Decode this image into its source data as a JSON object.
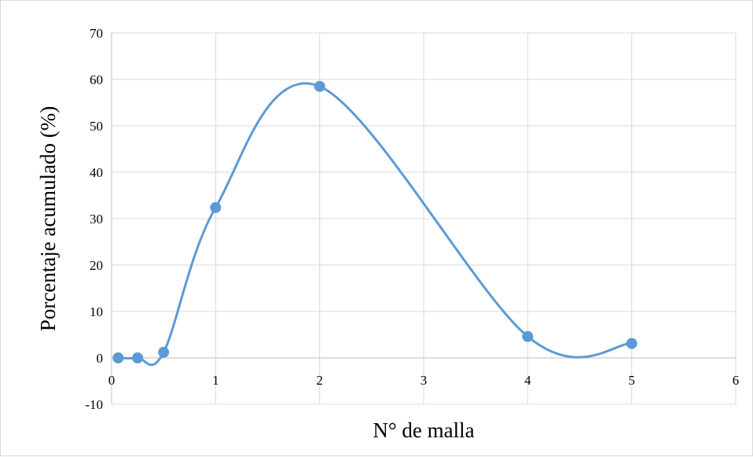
{
  "chart_data": {
    "type": "scatter",
    "title": "",
    "xlabel": "N° de malla",
    "ylabel": "Porcentaje acumulado (%)",
    "xlim": [
      0,
      6
    ],
    "ylim": [
      -10,
      70
    ],
    "x_ticks": [
      "0",
      "1",
      "2",
      "3",
      "4",
      "5",
      "6"
    ],
    "y_ticks": [
      "-10",
      "0",
      "10",
      "20",
      "30",
      "40",
      "50",
      "60",
      "70"
    ],
    "grid": true,
    "legend": "none",
    "smooth": true,
    "series": [
      {
        "color": "#5b9bd5",
        "points": [
          {
            "x": 0.063,
            "y": 0
          },
          {
            "x": 0.25,
            "y": 0
          },
          {
            "x": 0.5,
            "y": 1.2
          },
          {
            "x": 1,
            "y": 32.4
          },
          {
            "x": 2,
            "y": 58.5
          },
          {
            "x": 4,
            "y": 4.6
          },
          {
            "x": 5,
            "y": 3.1
          }
        ]
      }
    ]
  }
}
